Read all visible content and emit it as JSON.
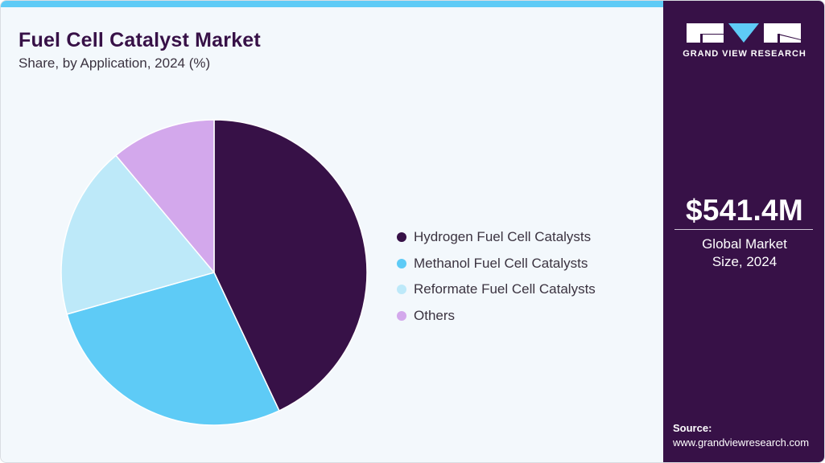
{
  "header": {
    "title": "Fuel Cell Catalyst Market",
    "subtitle": "Share, by Application, 2024 (%)"
  },
  "legend": {
    "items": [
      {
        "label": "Hydrogen Fuel Cell Catalysts",
        "color": "#371147"
      },
      {
        "label": "Methanol Fuel Cell Catalysts",
        "color": "#5ecbf6"
      },
      {
        "label": "Reformate Fuel Cell Catalysts",
        "color": "#bde9f9"
      },
      {
        "label": "Others",
        "color": "#d3a8ec"
      }
    ]
  },
  "sidebar": {
    "brand": "GRAND VIEW RESEARCH",
    "logo_icon": "gvr-logo-icon",
    "market_size": "$541.4M",
    "market_size_label": "Global Market Size, 2024",
    "source_label": "Source:",
    "source_url": "www.grandviewresearch.com"
  },
  "colors": {
    "brand_dark": "#371147",
    "accent": "#5ecbf6",
    "background": "#f3f8fc"
  },
  "chart_data": {
    "type": "pie",
    "title": "Fuel Cell Catalyst Market",
    "subtitle": "Share, by Application, 2024 (%)",
    "categories": [
      "Hydrogen Fuel Cell Catalysts",
      "Methanol Fuel Cell Catalysts",
      "Reformate Fuel Cell Catalysts",
      "Others"
    ],
    "values": [
      43.0,
      27.6,
      18.3,
      11.1
    ],
    "colors": [
      "#371147",
      "#5ecbf6",
      "#bde9f9",
      "#d3a8ec"
    ],
    "start_angle_deg": 0,
    "direction": "clockwise",
    "legend_position": "right",
    "unit": "%"
  }
}
